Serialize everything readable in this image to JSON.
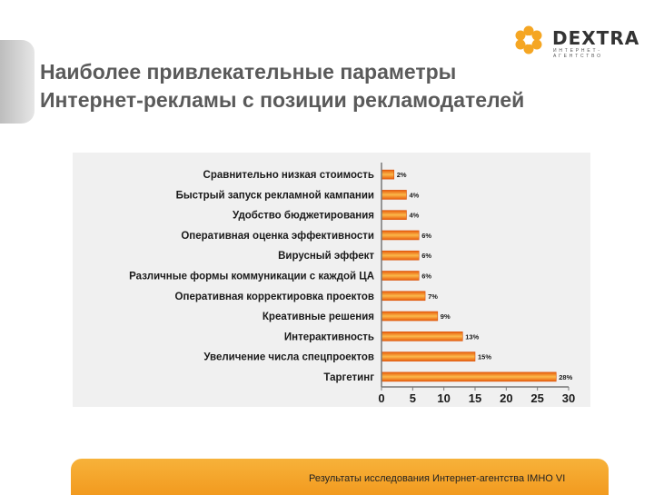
{
  "logo": {
    "name": "DEXTRA",
    "subtitle": "Интернет-агентство",
    "colors": {
      "petal": "#f5a623",
      "text": "#333333"
    }
  },
  "title": {
    "line1": "Наиболее привлекательные параметры",
    "line2": "Интернет-рекламы с позиции рекламодателей"
  },
  "chart_data": {
    "type": "bar",
    "orientation": "horizontal",
    "categories": [
      "Сравнительно низкая стоимость",
      "Быстрый запуск рекламной кампании",
      "Удобство бюджетирования",
      "Оперативная оценка эффективности",
      "Вирусный эффект",
      "Различные формы коммуникации с каждой ЦА",
      "Оперативная корректировка проектов",
      "Креативные решения",
      "Интерактивность",
      "Увеличение числа спецпроектов",
      "Таргетинг"
    ],
    "values": [
      2,
      4,
      4,
      6,
      6,
      6,
      7,
      9,
      13,
      15,
      28
    ],
    "value_labels": [
      "2%",
      "4%",
      "4%",
      "6%",
      "6%",
      "6%",
      "7%",
      "9%",
      "13%",
      "15%",
      "28%"
    ],
    "xlim": [
      0,
      30
    ],
    "xticks": [
      0,
      5,
      10,
      15,
      20,
      25,
      30
    ],
    "xtick_labels": [
      "0",
      "5",
      "10",
      "15",
      "20",
      "25",
      "30"
    ],
    "bar_colors": {
      "edge": "#e85d0c",
      "center": "#fbb84a"
    },
    "grid": false,
    "legend": "none"
  },
  "footer": {
    "source_text": "Результаты исследования Интернет-агентства IMHO VI",
    "bar_color": "#f4a22a"
  }
}
